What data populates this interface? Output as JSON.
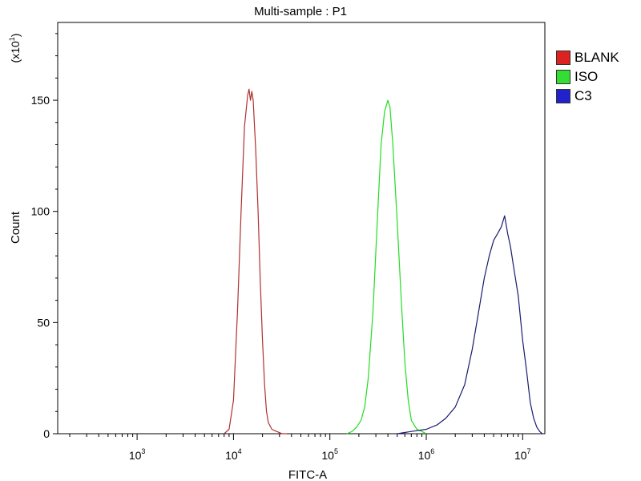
{
  "chart_data": {
    "type": "line",
    "title": "Multi-sample : P1",
    "xlabel": "FITC-A",
    "ylabel": "Count",
    "y_multiplier_label": "(x10",
    "y_multiplier_exp": "1",
    "x_scale": "log",
    "xlim": [
      150,
      17000000
    ],
    "ylim": [
      0,
      185
    ],
    "y_ticks": [
      0,
      50,
      100,
      150
    ],
    "y_tick_labels": [
      "0",
      "50",
      "100",
      "150"
    ],
    "x_ticks": [
      {
        "value": 1000,
        "base": "10",
        "exp": "3"
      },
      {
        "value": 10000,
        "base": "10",
        "exp": "4"
      },
      {
        "value": 100000,
        "base": "10",
        "exp": "5"
      },
      {
        "value": 1000000,
        "base": "10",
        "exp": "6"
      },
      {
        "value": 10000000,
        "base": "10",
        "exp": "7"
      }
    ],
    "legend_position": "right",
    "series": [
      {
        "name": "BLANK",
        "color": "#b03030",
        "x": [
          8000,
          9000,
          10000,
          11000,
          12000,
          13000,
          14000,
          14500,
          15000,
          15500,
          16000,
          17000,
          18000,
          19000,
          20000,
          21000,
          22000,
          23000,
          25000,
          28000,
          32000,
          36000
        ],
        "y": [
          0,
          2,
          15,
          55,
          100,
          138,
          152,
          155,
          150,
          154,
          150,
          128,
          100,
          68,
          42,
          22,
          10,
          5,
          2,
          1,
          0,
          0
        ]
      },
      {
        "name": "ISO",
        "color": "#22dd22",
        "x": [
          150000,
          170000,
          190000,
          210000,
          230000,
          250000,
          280000,
          310000,
          340000,
          370000,
          400000,
          420000,
          450000,
          500000,
          550000,
          600000,
          650000,
          700000,
          800000,
          900000,
          1000000
        ],
        "y": [
          0,
          1,
          3,
          6,
          12,
          25,
          55,
          95,
          130,
          145,
          150,
          147,
          130,
          95,
          60,
          32,
          15,
          6,
          2,
          1,
          0
        ]
      },
      {
        "name": "C3",
        "color": "#1a1a6e",
        "x": [
          500000,
          700000,
          1000000,
          1300000,
          1600000,
          2000000,
          2500000,
          3000000,
          3500000,
          4000000,
          4500000,
          5000000,
          5500000,
          6000000,
          6500000,
          7000000,
          7500000,
          8000000,
          9000000,
          10000000,
          11000000,
          12000000,
          13000000,
          14000000,
          15000000,
          16000000
        ],
        "y": [
          0,
          1,
          2,
          4,
          7,
          12,
          22,
          38,
          55,
          70,
          80,
          87,
          90,
          93,
          98,
          90,
          84,
          76,
          62,
          42,
          28,
          14,
          7,
          3,
          1,
          0
        ]
      }
    ]
  }
}
